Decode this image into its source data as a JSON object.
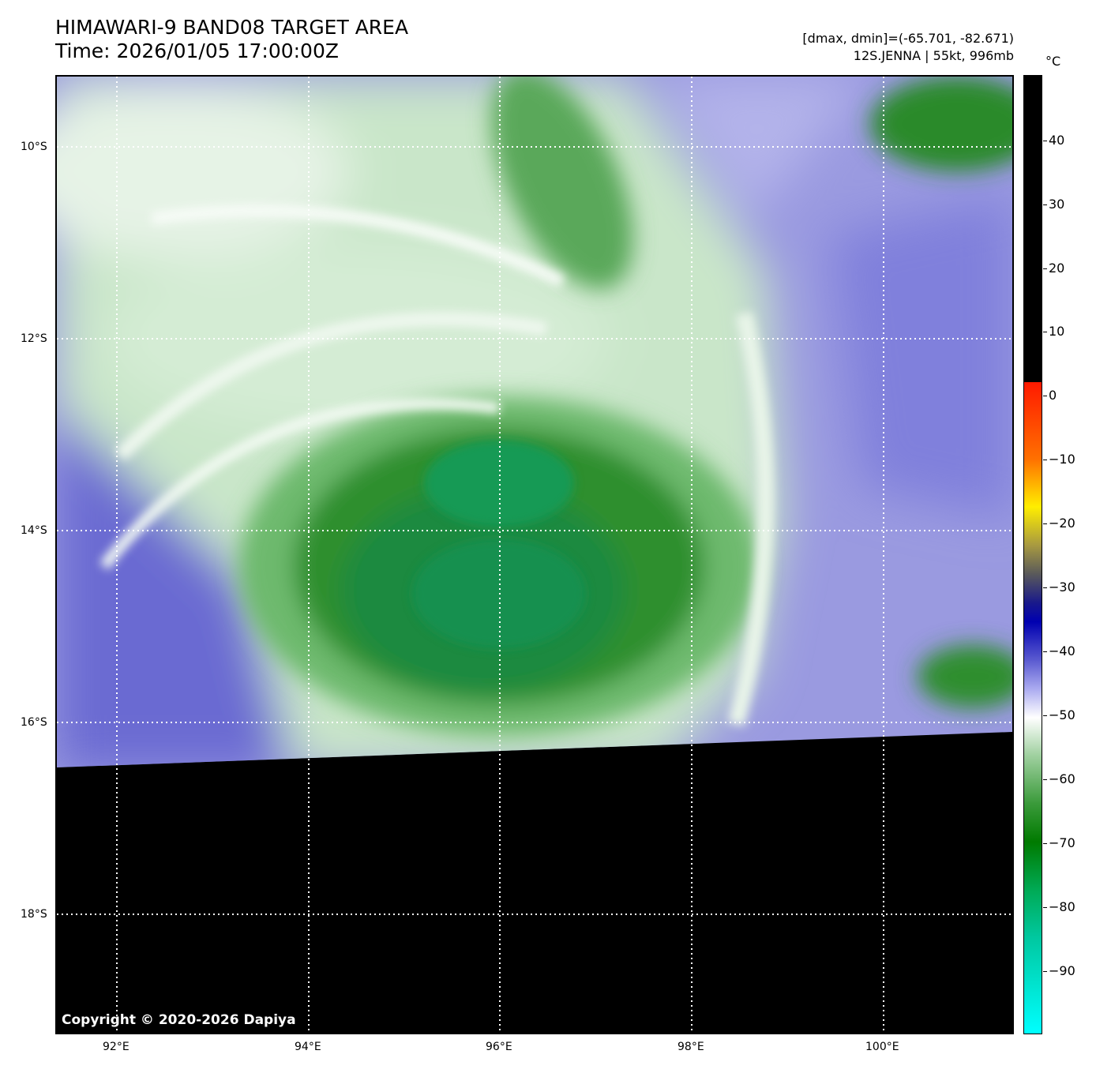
{
  "header": {
    "title": "HIMAWARI-9 BAND08 TARGET AREA",
    "time": "Time: 2026/01/05 17:00:00Z",
    "range": "[dmax, dmin]=(-65.701, -82.671)",
    "storm": "12S.JENNA | 55kt, 996mb"
  },
  "map": {
    "copyright": "Copyright © 2020-2026 Dapiya",
    "lat_labels": [
      "10°S",
      "12°S",
      "14°S",
      "16°S",
      "18°S"
    ],
    "lon_labels": [
      "92°E",
      "94°E",
      "96°E",
      "98°E",
      "100°E"
    ]
  },
  "colorbar": {
    "unit": "°C",
    "ticks": [
      "40",
      "30",
      "20",
      "10",
      "0",
      "−10",
      "−20",
      "−30",
      "−40",
      "−50",
      "−60",
      "−70",
      "−80",
      "−90"
    ],
    "colors": {
      "missing": "#000000",
      "warm": "#ff1a00",
      "mid": "#0000b0",
      "lavender": "#aaaaf0",
      "white": "#ffffff",
      "green": "#007a00",
      "cold": "#00ffff"
    }
  }
}
